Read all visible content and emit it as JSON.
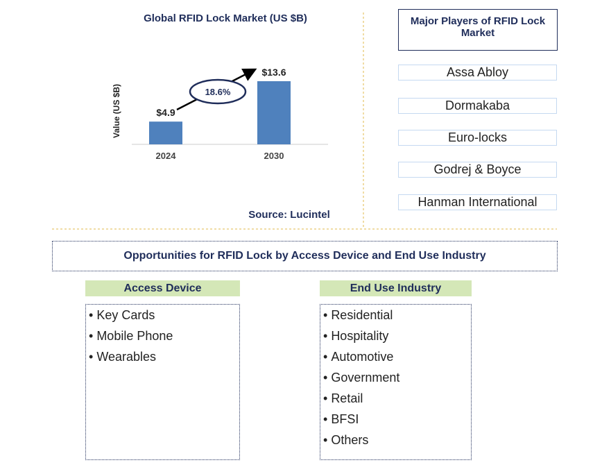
{
  "chart_data": {
    "type": "bar",
    "title": "Global RFID Lock Market (US $B)",
    "y_label": "Value (US $B)",
    "categories": [
      "2024",
      "2030"
    ],
    "values": [
      4.9,
      13.6
    ],
    "value_labels": [
      "$4.9",
      "$13.6"
    ],
    "color": "#4f81bd",
    "annotation": "18.6%",
    "source": "Source: Lucintel"
  },
  "players": {
    "title": "Major Players of RFID Lock Market",
    "items": [
      "Assa Abloy",
      "Dormakaba",
      "Euro-locks",
      "Godrej & Boyce",
      "Hanman International"
    ]
  },
  "opportunities": {
    "title": "Opportunities for RFID Lock by Access Device and End Use Industry",
    "access_device": {
      "title": "Access Device",
      "items": [
        "Key Cards",
        "Mobile Phone",
        "Wearables"
      ]
    },
    "end_use": {
      "title": "End Use Industry",
      "items": [
        "Residential",
        "Hospitality",
        "Automotive",
        "Government",
        "Retail",
        "BFSI",
        "Others"
      ]
    }
  }
}
